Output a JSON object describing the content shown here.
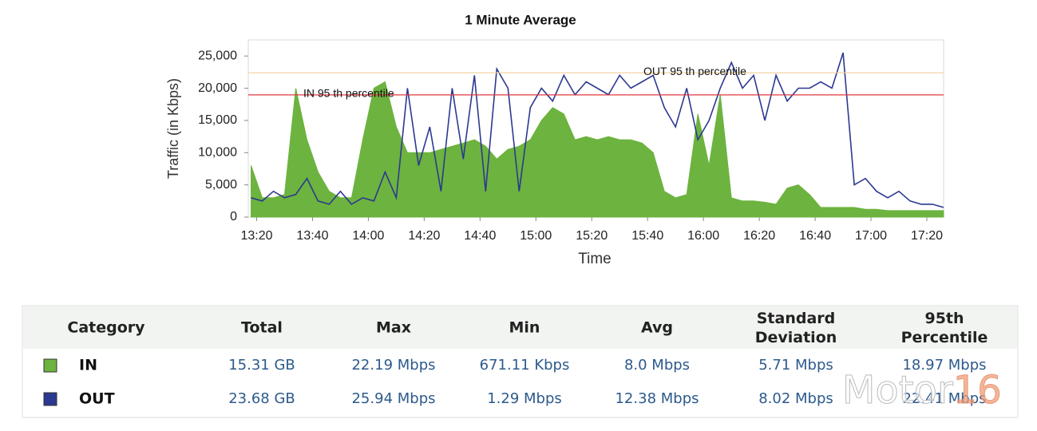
{
  "chart_data": {
    "type": "area-line",
    "title": "1 Minute Average",
    "x_label": "Time",
    "y_label": "Traffic (in Kbps)",
    "x": [
      "13:18",
      "13:22",
      "13:26",
      "13:30",
      "13:34",
      "13:38",
      "13:42",
      "13:46",
      "13:50",
      "13:54",
      "13:58",
      "14:02",
      "14:06",
      "14:10",
      "14:14",
      "14:18",
      "14:22",
      "14:26",
      "14:30",
      "14:34",
      "14:38",
      "14:42",
      "14:46",
      "14:50",
      "14:54",
      "14:58",
      "15:02",
      "15:06",
      "15:10",
      "15:14",
      "15:18",
      "15:22",
      "15:26",
      "15:30",
      "15:34",
      "15:38",
      "15:42",
      "15:46",
      "15:50",
      "15:54",
      "15:58",
      "16:02",
      "16:06",
      "16:10",
      "16:14",
      "16:18",
      "16:22",
      "16:26",
      "16:30",
      "16:34",
      "16:38",
      "16:42",
      "16:46",
      "16:50",
      "16:54",
      "16:58",
      "17:02",
      "17:06",
      "17:10",
      "17:14",
      "17:18",
      "17:22",
      "17:26"
    ],
    "series": [
      {
        "name": "IN",
        "color": "#6db33f",
        "style": "area",
        "values": [
          8000,
          3000,
          3000,
          3500,
          20000,
          12000,
          7000,
          4000,
          3000,
          3000,
          12000,
          20000,
          21000,
          14000,
          10000,
          10000,
          10000,
          10500,
          11000,
          11500,
          12000,
          11000,
          9000,
          10500,
          11000,
          12000,
          15000,
          17000,
          16000,
          12000,
          12500,
          12000,
          12500,
          12000,
          12000,
          11500,
          10000,
          4000,
          3000,
          3500,
          16000,
          8000,
          19000,
          3000,
          2500,
          2500,
          2300,
          2000,
          4500,
          5000,
          3500,
          1500,
          1500,
          1500,
          1500,
          1200,
          1200,
          1000,
          1000,
          1000,
          1000,
          1000,
          1000
        ]
      },
      {
        "name": "OUT",
        "color": "#2b3990",
        "style": "line",
        "values": [
          3000,
          2500,
          4000,
          3000,
          3500,
          6000,
          2500,
          2000,
          4000,
          2000,
          3000,
          2500,
          7000,
          3000,
          20000,
          8000,
          14000,
          4000,
          20000,
          9000,
          22000,
          4000,
          23000,
          20000,
          4000,
          17000,
          20000,
          18000,
          22000,
          19000,
          21000,
          20000,
          19000,
          22000,
          20000,
          21000,
          22000,
          17000,
          14000,
          20000,
          12000,
          15000,
          20000,
          24000,
          20000,
          22000,
          15000,
          22000,
          18000,
          20000,
          20000,
          21000,
          20000,
          25500,
          5000,
          6000,
          4000,
          3000,
          4000,
          2500,
          2000,
          2000,
          1500
        ]
      }
    ],
    "xlim": [
      "13:17",
      "17:26"
    ],
    "xticks": [
      "13:20",
      "13:40",
      "14:00",
      "14:20",
      "14:40",
      "15:00",
      "15:20",
      "15:40",
      "16:00",
      "16:20",
      "16:40",
      "17:00",
      "17:20"
    ],
    "ylim": [
      0,
      27500
    ],
    "yticks": [
      0,
      {
        "value": 5000,
        "label": "5,000"
      },
      {
        "value": 10000,
        "label": "10,000"
      },
      {
        "value": 15000,
        "label": "15,000"
      },
      {
        "value": 20000,
        "label": "20,000"
      },
      {
        "value": 25000,
        "label": "25,000"
      }
    ],
    "grid": false,
    "reference_lines": [
      {
        "label": "IN 95 th percentile",
        "value": 18970,
        "color": "#e0393e"
      },
      {
        "label": "OUT 95 th percentile",
        "value": 22400,
        "color": "#f2cf9a"
      }
    ]
  },
  "table": {
    "header": [
      "Category",
      "Total",
      "Max",
      "Min",
      "Avg",
      "Standard Deviation",
      "95th Percentile"
    ],
    "rows": [
      [
        "IN",
        "15.31 GB",
        "22.19 Mbps",
        "671.11 Kbps",
        "8.0 Mbps",
        "5.71 Mbps",
        "18.97 Mbps"
      ],
      [
        "OUT",
        "23.68 GB",
        "25.94 Mbps",
        "1.29 Mbps",
        "12.38 Mbps",
        "8.02 Mbps",
        "22.41 Mbps"
      ]
    ]
  },
  "watermark": [
    "Motor",
    "16"
  ]
}
